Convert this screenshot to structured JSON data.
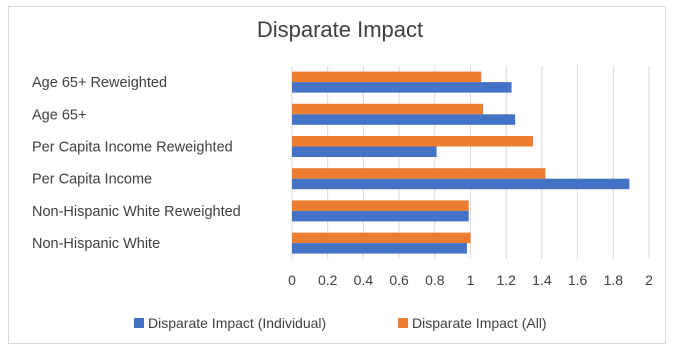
{
  "chart_data": {
    "type": "bar",
    "orientation": "horizontal",
    "title": "Disparate Impact",
    "xlabel": "",
    "ylabel": "",
    "categories": [
      "Age 65+ Reweighted",
      "Age 65+",
      "Per Capita Income Reweighted",
      "Per Capita Income",
      "Non-Hispanic White Reweighted",
      "Non-Hispanic White"
    ],
    "series": [
      {
        "name": "Disparate Impact (Individual)",
        "color": "#4472c4",
        "values": [
          1.23,
          1.25,
          0.81,
          1.89,
          0.99,
          0.98
        ]
      },
      {
        "name": "Disparate Impact (All)",
        "color": "#ed7d31",
        "values": [
          1.06,
          1.07,
          1.35,
          1.42,
          0.99,
          1.0
        ]
      }
    ],
    "xlim": [
      0,
      2
    ],
    "xticks": [
      "0",
      "0.2",
      "0.4",
      "0.6",
      "0.8",
      "1",
      "1.2",
      "1.4",
      "1.6",
      "1.8",
      "2"
    ],
    "grid": true,
    "legend_position": "bottom"
  }
}
